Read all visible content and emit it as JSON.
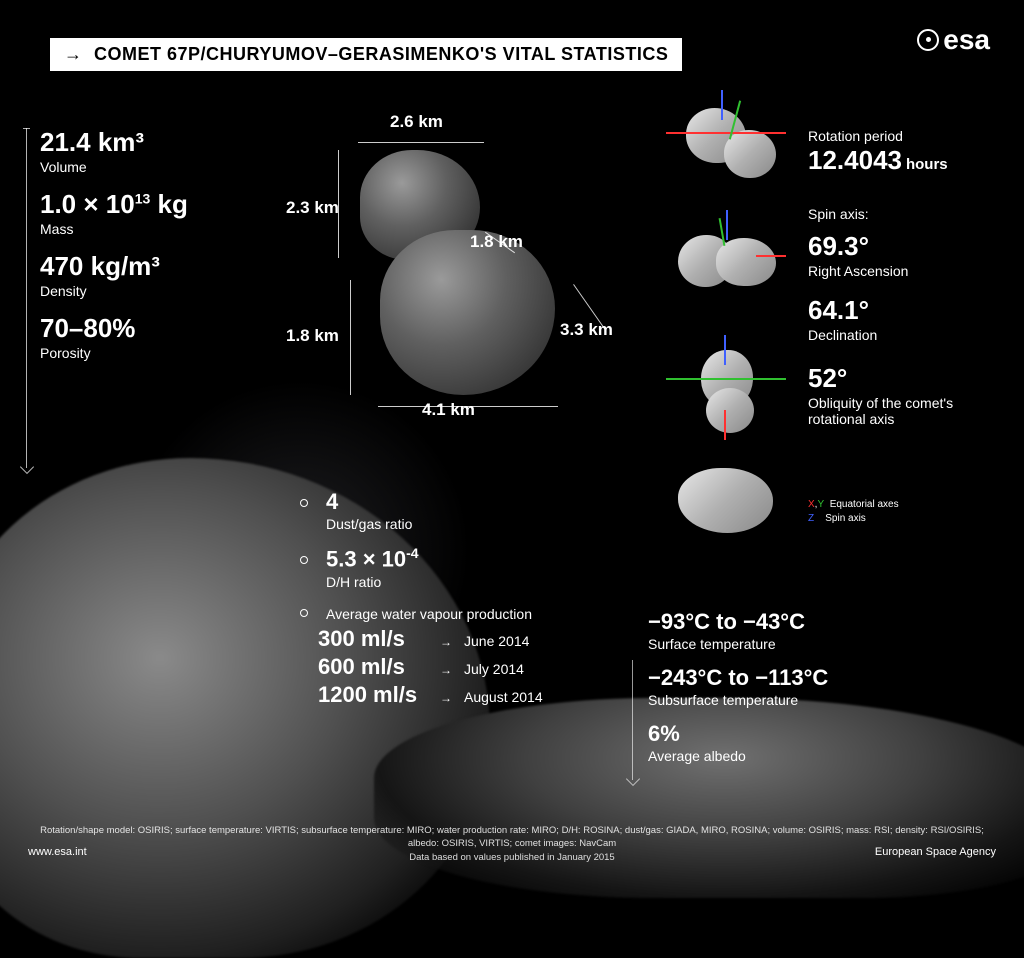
{
  "title": "COMET 67P/CHURYUMOV–GERASIMENKO'S VITAL STATISTICS",
  "logo_text": "esa",
  "left_stats": {
    "volume": {
      "value": "21.4 km³",
      "label": "Volume"
    },
    "mass": {
      "value_html": "1.0 × 10<sup>13</sup> kg",
      "label": "Mass"
    },
    "density": {
      "value": "470 kg/m³",
      "label": "Density"
    },
    "porosity": {
      "value": "70–80%",
      "label": "Porosity"
    }
  },
  "dimensions": {
    "head_w": "2.6 km",
    "head_h": "2.3 km",
    "head_d": "1.8 km",
    "body_h": "1.8 km",
    "body_d": "3.3 km",
    "body_w": "4.1 km"
  },
  "mid_stats": {
    "dust_gas": {
      "value": "4",
      "label": "Dust/gas ratio"
    },
    "dh": {
      "value_html": "5.3 × 10<sup>-4</sup>",
      "label": "D/H ratio"
    },
    "water_header": "Average water vapour production",
    "water": [
      {
        "val": "300 ml/s",
        "date": "June 2014"
      },
      {
        "val": "600 ml/s",
        "date": "July 2014"
      },
      {
        "val": "1200 ml/s",
        "date": "August 2014"
      }
    ]
  },
  "right_stats": {
    "rotation": {
      "label": "Rotation period",
      "value": "12.4043",
      "unit": "hours"
    },
    "spin_header": "Spin axis:",
    "ra": {
      "value": "69.3°",
      "label": "Right Ascension"
    },
    "dec": {
      "value": "64.1°",
      "label": "Declination"
    },
    "obliq": {
      "value": "52°",
      "label": "Obliquity of the comet's rotational axis"
    }
  },
  "axes_legend": {
    "xy": "Equatorial axes",
    "z": "Spin axis"
  },
  "temp_stats": {
    "surface": {
      "value": "−93°C to −43°C",
      "label": "Surface temperature"
    },
    "subsurface": {
      "value": "−243°C to −113°C",
      "label": "Subsurface temperature"
    },
    "albedo": {
      "value": "6%",
      "label": "Average albedo"
    }
  },
  "footer": {
    "credits": "Rotation/shape model: OSIRIS; surface temperature: VIRTIS; subsurface temperature: MIRO; water production rate: MIRO; D/H: ROSINA; dust/gas: GIADA, MIRO, ROSINA; volume: OSIRIS; mass: RSI; density: RSI/OSIRIS; albedo: OSIRIS, VIRTIS; comet images: NavCam",
    "data_note": "Data based on values published in January 2015",
    "url": "www.esa.int",
    "agency": "European Space Agency"
  },
  "colors": {
    "bg": "#000000",
    "text": "#ffffff",
    "axis_x": "#ff3030",
    "axis_y": "#30c030",
    "axis_z": "#4060ff",
    "model_fill": "#d0d0d0"
  }
}
